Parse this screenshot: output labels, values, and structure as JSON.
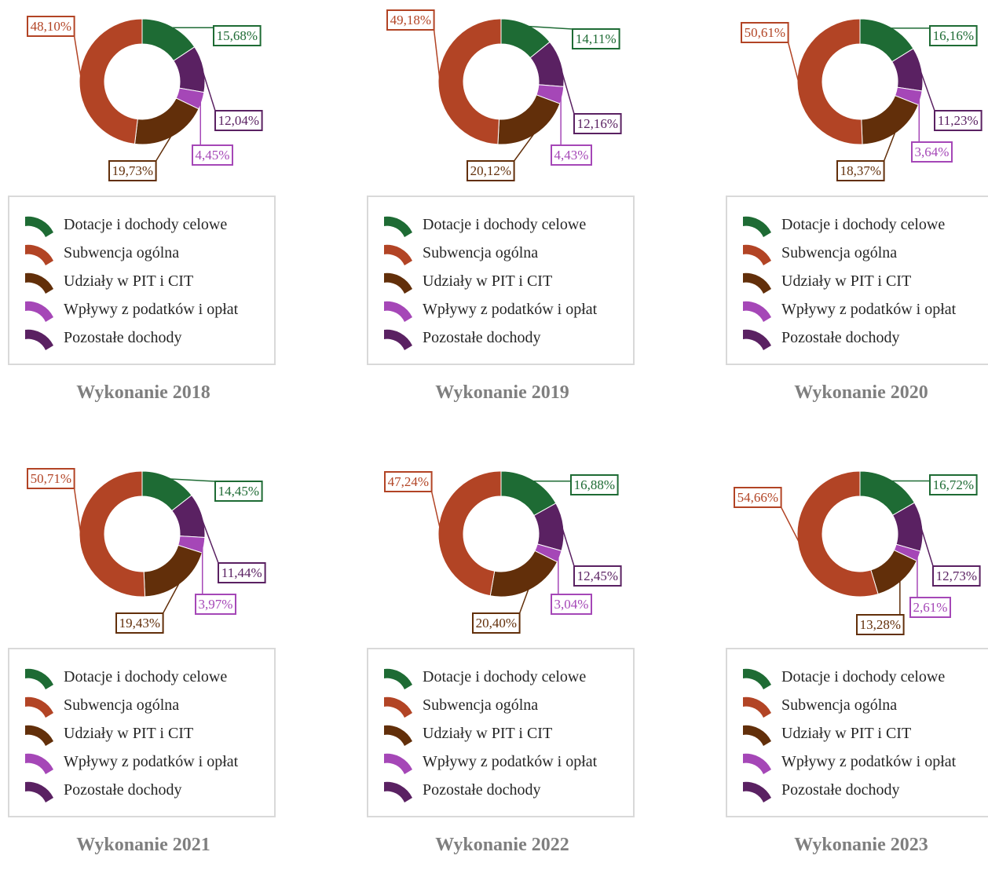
{
  "legend": {
    "items": [
      {
        "label": "Dotacje i dochody celowe",
        "color": "#1e6b34"
      },
      {
        "label": "Subwencja ogólna",
        "color": "#b24425"
      },
      {
        "label": "Udziały w PIT i CIT",
        "color": "#622f0a"
      },
      {
        "label": "Wpływy z podatków i opłat",
        "color": "#a547b7"
      },
      {
        "label": "Pozostałe dochody",
        "color": "#5a2162"
      }
    ]
  },
  "chart_data": [
    {
      "type": "pie",
      "title": "Wykonanie 2018",
      "categories": [
        "Dotacje i dochody celowe",
        "Pozostałe dochody",
        "Wpływy z podatków i opłat",
        "Udziały w PIT i CIT",
        "Subwencja ogólna"
      ],
      "values": [
        15.68,
        12.04,
        4.45,
        19.73,
        48.1
      ],
      "labels": [
        "15,68%",
        "12,04%",
        "4,45%",
        "19,73%",
        "48,10%"
      ]
    },
    {
      "type": "pie",
      "title": "Wykonanie 2019",
      "categories": [
        "Dotacje i dochody celowe",
        "Pozostałe dochody",
        "Wpływy z podatków i opłat",
        "Udziały w PIT i CIT",
        "Subwencja ogólna"
      ],
      "values": [
        14.11,
        12.16,
        4.43,
        20.12,
        49.18
      ],
      "labels": [
        "14,11%",
        "12,16%",
        "4,43%",
        "20,12%",
        "49,18%"
      ]
    },
    {
      "type": "pie",
      "title": "Wykonanie 2020",
      "categories": [
        "Dotacje i dochody celowe",
        "Pozostałe dochody",
        "Wpływy z podatków i opłat",
        "Udziały w PIT i CIT",
        "Subwencja ogólna"
      ],
      "values": [
        16.16,
        11.23,
        3.64,
        18.37,
        50.61
      ],
      "labels": [
        "16,16%",
        "11,23%",
        "3,64%",
        "18,37%",
        "50,61%"
      ]
    },
    {
      "type": "pie",
      "title": "Wykonanie 2021",
      "categories": [
        "Dotacje i dochody celowe",
        "Pozostałe dochody",
        "Wpływy z podatków i opłat",
        "Udziały w PIT i CIT",
        "Subwencja ogólna"
      ],
      "values": [
        14.45,
        11.44,
        3.97,
        19.43,
        50.71
      ],
      "labels": [
        "14,45%",
        "11,44%",
        "3,97%",
        "19,43%",
        "50,71%"
      ]
    },
    {
      "type": "pie",
      "title": "Wykonanie 2022",
      "categories": [
        "Dotacje i dochody celowe",
        "Pozostałe dochody",
        "Wpływy z podatków i opłat",
        "Udziały w PIT i CIT",
        "Subwencja ogólna"
      ],
      "values": [
        16.88,
        12.45,
        3.04,
        20.4,
        47.24
      ],
      "labels": [
        "16,88%",
        "12,45%",
        "3,04%",
        "20,40%",
        "47,24%"
      ]
    },
    {
      "type": "pie",
      "title": "Wykonanie 2023",
      "categories": [
        "Dotacje i dochody celowe",
        "Pozostałe dochody",
        "Wpływy z podatków i opłat",
        "Udziały w PIT i CIT",
        "Subwencja ogólna"
      ],
      "values": [
        16.72,
        12.73,
        2.61,
        13.28,
        54.66
      ],
      "labels": [
        "16,72%",
        "12,73%",
        "2,61%",
        "13,28%",
        "54,66%"
      ]
    }
  ]
}
